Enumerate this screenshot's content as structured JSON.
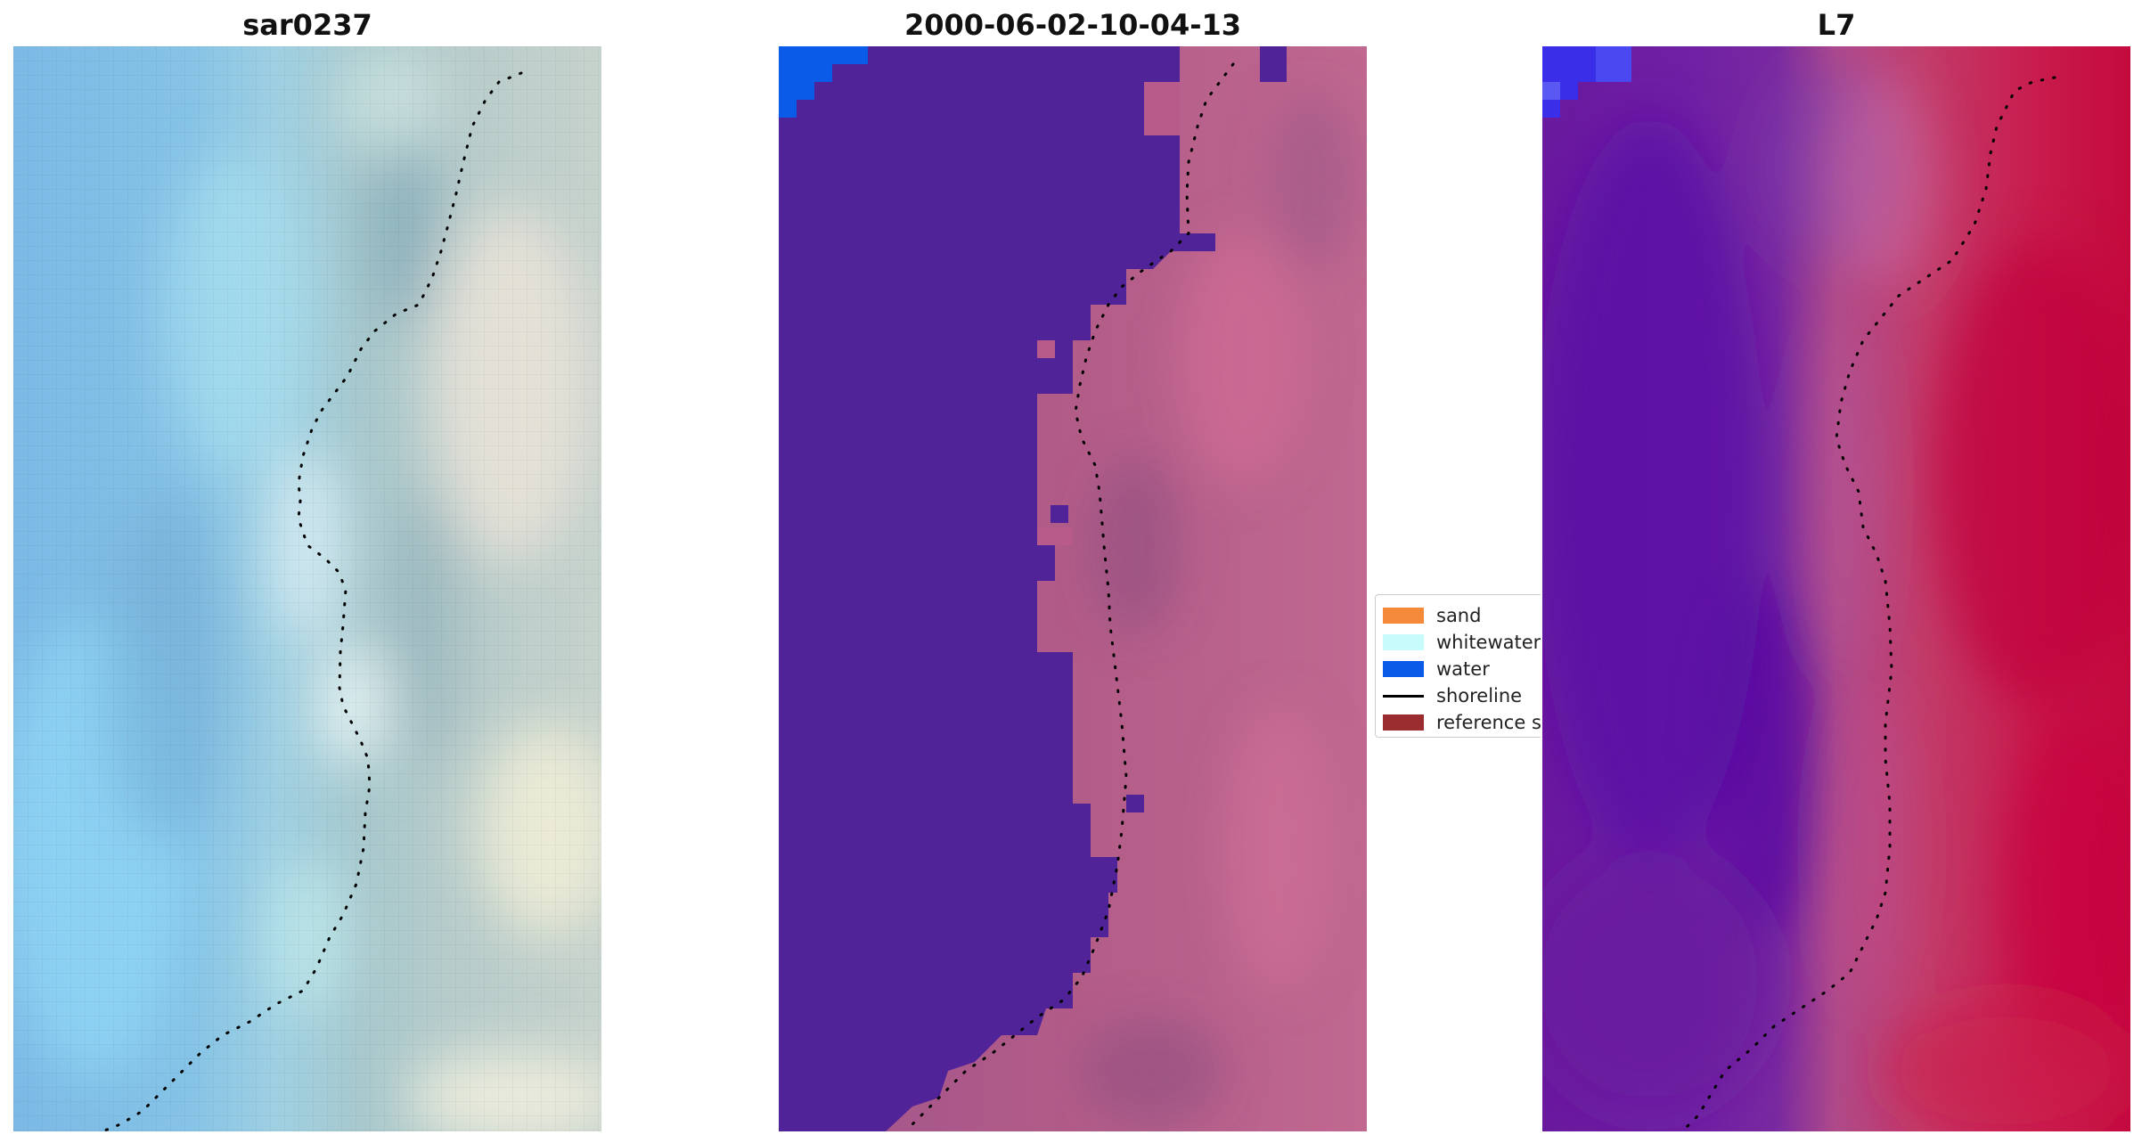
{
  "panels": [
    {
      "title": "sar0237"
    },
    {
      "title": "2000-06-02-10-04-13"
    },
    {
      "title": "L7"
    }
  ],
  "legend": {
    "items": [
      {
        "label": "sand",
        "color": "#f5893a",
        "kind": "patch"
      },
      {
        "label": "whitewater",
        "color": "#c8fbfb",
        "kind": "patch"
      },
      {
        "label": "water",
        "color": "#0a5be8",
        "kind": "patch"
      },
      {
        "label": "shoreline",
        "color": "#000000",
        "kind": "line"
      },
      {
        "label": "reference shoreline",
        "color": "#9b2d30",
        "kind": "patch"
      }
    ]
  },
  "colors": {
    "classified_water": "#512398",
    "land_magenta": "#b85a8a",
    "index_low": "#5a10a8",
    "index_high": "#c4063c",
    "shoreline_dots": "#000000"
  }
}
